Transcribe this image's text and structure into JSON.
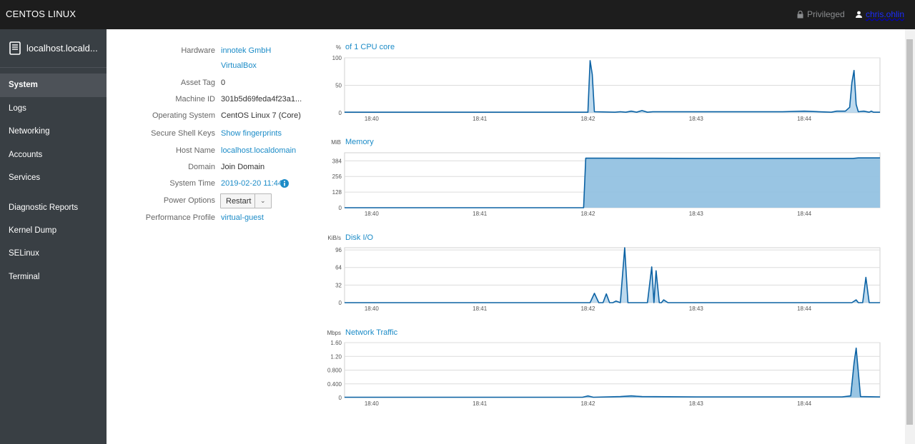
{
  "topbar": {
    "brand": "CENTOS LINUX",
    "privileged": "Privileged",
    "user": "chris.ohlin"
  },
  "sidebar": {
    "host": "localhost.locald...",
    "items": [
      {
        "label": "System",
        "active": true
      },
      {
        "label": "Logs"
      },
      {
        "label": "Networking"
      },
      {
        "label": "Accounts"
      },
      {
        "label": "Services"
      },
      {
        "label": "Diagnostic Reports"
      },
      {
        "label": "Kernel Dump"
      },
      {
        "label": "SELinux"
      },
      {
        "label": "Terminal"
      }
    ]
  },
  "system": {
    "hardware_label": "Hardware",
    "hardware_vendor": "innotek GmbH",
    "hardware_model": "VirtualBox",
    "asset_tag_label": "Asset Tag",
    "asset_tag": "0",
    "machine_id_label": "Machine ID",
    "machine_id": "301b5d69feda4f23a1...",
    "os_label": "Operating System",
    "os": "CentOS Linux 7 (Core)",
    "ssh_label": "Secure Shell Keys",
    "ssh": "Show fingerprints",
    "hostname_label": "Host Name",
    "hostname": "localhost.localdomain",
    "domain_label": "Domain",
    "domain": "Join Domain",
    "time_label": "System Time",
    "time": "2019-02-20 11:44",
    "power_label": "Power Options",
    "power_button": "Restart",
    "perf_label": "Performance Profile",
    "perf": "virtual-guest"
  },
  "colors": {
    "line": "#0b62a4",
    "fill": "#93c2e2",
    "link": "#1b8bc7",
    "sidebar": "#393f44",
    "topbar": "#1d1d1d"
  },
  "chart_data": [
    {
      "type": "line",
      "unit": "%",
      "title": "of 1 CPU core",
      "x_ticks": [
        "18:40",
        "18:41",
        "18:42",
        "18:43",
        "18:44"
      ],
      "y_ticks": [
        "100",
        "50",
        "0"
      ],
      "ylim": [
        0,
        100
      ],
      "xlim": [
        39.75,
        44.7
      ],
      "x": [
        39.75,
        42.0,
        42.0,
        42.02,
        42.04,
        42.06,
        42.25,
        42.3,
        42.35,
        42.4,
        42.45,
        42.5,
        42.55,
        42.6,
        42.8,
        43.2,
        43.5,
        43.8,
        44.0,
        44.25,
        44.3,
        44.38,
        44.42,
        44.44,
        44.46,
        44.48,
        44.5,
        44.55,
        44.6,
        44.62,
        44.64,
        44.7
      ],
      "y": [
        1,
        1,
        4,
        95,
        70,
        2,
        1,
        2,
        1,
        3,
        1,
        4,
        1,
        2,
        2,
        2,
        2,
        2,
        3,
        1,
        3,
        3,
        10,
        55,
        77,
        15,
        2,
        3,
        1,
        3,
        1,
        1
      ]
    },
    {
      "type": "area",
      "unit": "MiB",
      "title": "Memory",
      "x_ticks": [
        "18:40",
        "18:41",
        "18:42",
        "18:43",
        "18:44"
      ],
      "y_ticks": [
        "384",
        "256",
        "128",
        "0"
      ],
      "ylim": [
        0,
        450
      ],
      "xlim": [
        39.75,
        44.7
      ],
      "x": [
        39.75,
        41.96,
        41.98,
        42.6,
        43.0,
        43.5,
        44.0,
        44.45,
        44.5,
        44.7
      ],
      "y": [
        0,
        0,
        406,
        405,
        404,
        404,
        404,
        404,
        408,
        408
      ]
    },
    {
      "type": "line",
      "unit": "KiB/s",
      "title": "Disk I/O",
      "x_ticks": [
        "18:40",
        "18:41",
        "18:42",
        "18:43",
        "18:44"
      ],
      "y_ticks": [
        "96",
        "64",
        "32",
        "0"
      ],
      "ylim": [
        0,
        100
      ],
      "xlim": [
        39.75,
        44.7
      ],
      "x": [
        39.75,
        42.02,
        42.06,
        42.1,
        42.14,
        42.17,
        42.2,
        42.23,
        42.26,
        42.3,
        42.34,
        42.37,
        42.4,
        42.45,
        42.55,
        42.59,
        42.61,
        42.63,
        42.66,
        42.68,
        42.7,
        42.74,
        42.8,
        44.44,
        44.48,
        44.5,
        44.54,
        44.57,
        44.6,
        44.7
      ],
      "y": [
        0,
        0,
        17,
        0,
        0,
        16,
        0,
        0,
        3,
        0,
        100,
        0,
        0,
        0,
        0,
        65,
        0,
        58,
        0,
        0,
        5,
        0,
        0,
        0,
        5,
        0,
        0,
        46,
        0,
        0
      ]
    },
    {
      "type": "area",
      "unit": "Mbps",
      "title": "Network Traffic",
      "x_ticks": [
        "18:40",
        "18:41",
        "18:42",
        "18:43",
        "18:44"
      ],
      "y_ticks": [
        "1.60",
        "1.20",
        "0.800",
        "0.400",
        "0"
      ],
      "ylim": [
        0,
        1.6
      ],
      "xlim": [
        39.75,
        44.7
      ],
      "x": [
        39.75,
        41.95,
        42.0,
        42.05,
        42.3,
        42.4,
        42.5,
        43.0,
        44.35,
        44.43,
        44.46,
        44.48,
        44.52,
        44.7
      ],
      "y": [
        0.01,
        0.01,
        0.05,
        0.01,
        0.03,
        0.05,
        0.03,
        0.02,
        0.02,
        0.05,
        1.0,
        1.44,
        0.03,
        0.02
      ]
    }
  ]
}
